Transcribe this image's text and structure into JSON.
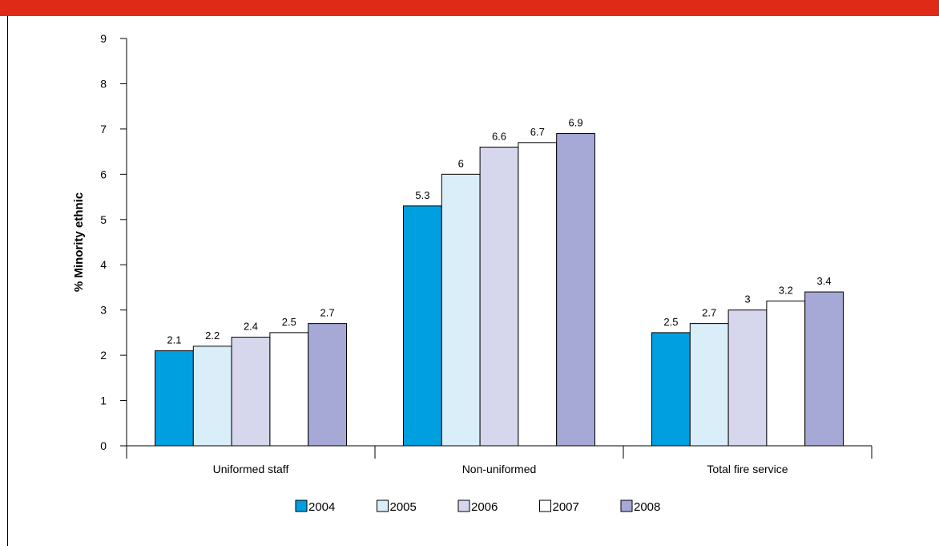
{
  "colors": {
    "top_bar": "#e02a18"
  },
  "chart_data": {
    "type": "bar",
    "title": "",
    "xlabel": "",
    "ylabel": "% Minority ethnic",
    "ylim": [
      0,
      9
    ],
    "yticks": [
      0,
      1,
      2,
      3,
      4,
      5,
      6,
      7,
      8,
      9
    ],
    "categories": [
      "Uniformed staff",
      "Non-uniformed",
      "Total fire service"
    ],
    "series": [
      {
        "name": "2004",
        "color": "#009fdf",
        "values": [
          2.1,
          5.3,
          2.5
        ],
        "labels": [
          "2.1",
          "5.3",
          "2.5"
        ]
      },
      {
        "name": "2005",
        "color": "#d9eef8",
        "values": [
          2.2,
          6.0,
          2.7
        ],
        "labels": [
          "2.2",
          "6",
          "2.7"
        ]
      },
      {
        "name": "2006",
        "color": "#d6d7ec",
        "values": [
          2.4,
          6.6,
          3.0
        ],
        "labels": [
          "2.4",
          "6.6",
          "3"
        ]
      },
      {
        "name": "2007",
        "color": "#ffffff",
        "values": [
          2.5,
          6.7,
          3.2
        ],
        "labels": [
          "2.5",
          "6.7",
          "3.2"
        ]
      },
      {
        "name": "2008",
        "color": "#a6a9d6",
        "values": [
          2.7,
          6.9,
          3.4
        ],
        "labels": [
          "2.7",
          "6.9",
          "3.4"
        ]
      }
    ],
    "grid": false,
    "legend_position": "bottom"
  }
}
